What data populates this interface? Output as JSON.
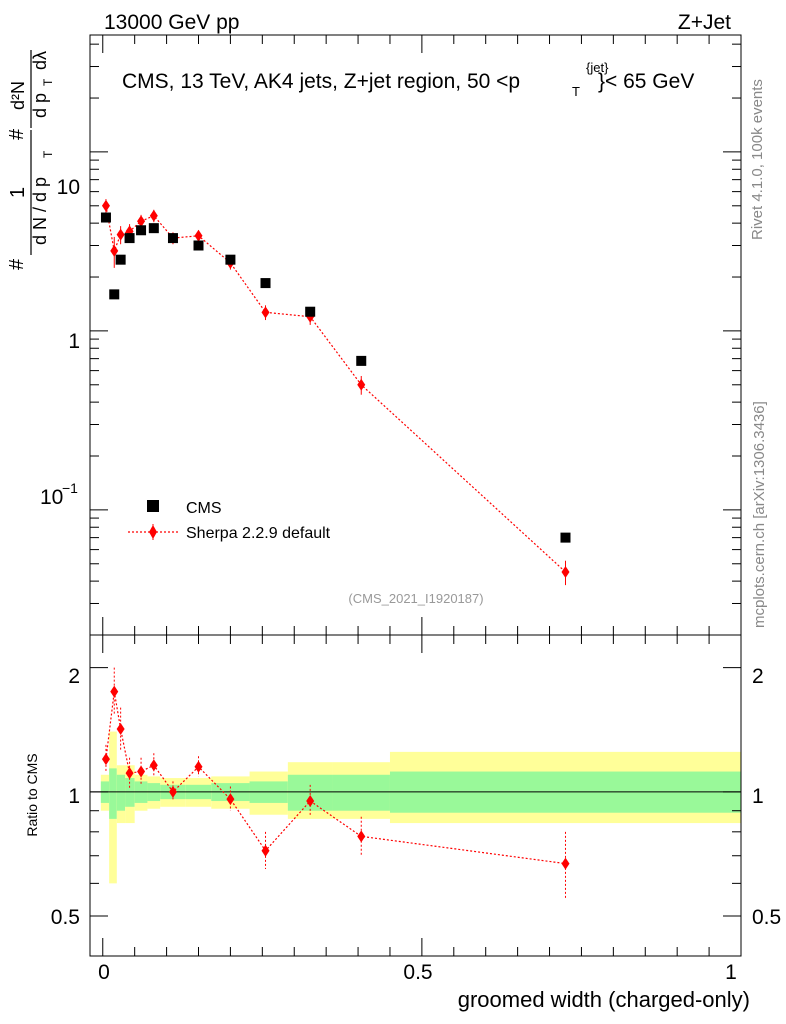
{
  "header": {
    "energy_label": "13000 GeV pp",
    "process_label": "Z+Jet"
  },
  "side_labels": {
    "rivet": "Rivet 4.1.0,  100k events",
    "mcplots": "mcplots.cern.ch [arXiv:1306.3436]"
  },
  "colors": {
    "cms": "#000000",
    "sherpa": "#ff0000",
    "band_inner": "#99f999",
    "band_outer": "#ffff99"
  },
  "chart_data": [
    {
      "type": "scatter",
      "title": "CMS, 13 TeV, AK4 jets, Z+jet region, 50 <p",
      "title_sup": "{jet}",
      "title_sub": "T",
      "title_tail": "}< 65 GeV",
      "analysis_id": "(CMS_2021_I1920187)",
      "ylabel_parts": {
        "frac_num": "1",
        "frac_den": "d N / d p",
        "frac_den_sub": "T",
        "deriv_num": "d²N",
        "deriv_den": "d p",
        "deriv_den_sub": "T",
        "dlambda": "dλ",
        "hash1": "#",
        "hash2": "#"
      },
      "yscale": "log",
      "ylim": [
        0.02,
        45
      ],
      "xlim": [
        -0.02,
        1.0
      ],
      "y_tick_labels": [
        "1",
        "10"
      ],
      "y_tick_label_sci": {
        "base": "10",
        "exp": "−1"
      },
      "legend": {
        "placement": "bottom-left",
        "entries": [
          "CMS",
          "Sherpa 2.2.9 default"
        ]
      },
      "series": [
        {
          "name": "CMS",
          "marker": "square",
          "x": [
            0.005,
            0.018,
            0.028,
            0.042,
            0.06,
            0.08,
            0.11,
            0.15,
            0.2,
            0.255,
            0.325,
            0.405,
            0.725
          ],
          "y": [
            4.3,
            1.6,
            2.5,
            3.3,
            3.65,
            3.75,
            3.3,
            3.0,
            2.5,
            1.85,
            1.28,
            0.68,
            0.07
          ]
        },
        {
          "name": "Sherpa 2.2.9 default",
          "marker": "diamond",
          "x": [
            0.005,
            0.018,
            0.028,
            0.042,
            0.06,
            0.08,
            0.11,
            0.15,
            0.2,
            0.255,
            0.325,
            0.405,
            0.725
          ],
          "y": [
            5.0,
            2.8,
            3.45,
            3.6,
            4.1,
            4.4,
            3.3,
            3.4,
            2.4,
            1.27,
            1.2,
            0.5,
            0.045
          ],
          "err": [
            0.45,
            0.55,
            0.4,
            0.35,
            0.35,
            0.35,
            0.25,
            0.25,
            0.2,
            0.12,
            0.12,
            0.06,
            0.007
          ]
        }
      ]
    },
    {
      "type": "scatter",
      "title": "Ratio to CMS",
      "yscale": "log",
      "ylim": [
        0.4,
        2.4
      ],
      "xlim": [
        -0.02,
        1.0
      ],
      "xlabel": "groomed width (charged-only)",
      "x_tick_labels": [
        "0",
        "0.5",
        "1"
      ],
      "y_tick_labels": [
        "0.5",
        "1",
        "2"
      ],
      "reference_line": 1,
      "bands": [
        {
          "x0": -0.003,
          "x1": 0.01,
          "inner": [
            0.94,
            1.06
          ],
          "outer": [
            0.9,
            1.1
          ]
        },
        {
          "x0": 0.01,
          "x1": 0.022,
          "inner": [
            0.86,
            1.14
          ],
          "outer": [
            0.6,
            1.4
          ]
        },
        {
          "x0": 0.022,
          "x1": 0.035,
          "inner": [
            0.9,
            1.1
          ],
          "outer": [
            0.84,
            1.16
          ]
        },
        {
          "x0": 0.035,
          "x1": 0.05,
          "inner": [
            0.92,
            1.08
          ],
          "outer": [
            0.84,
            1.16
          ]
        },
        {
          "x0": 0.05,
          "x1": 0.07,
          "inner": [
            0.94,
            1.06
          ],
          "outer": [
            0.9,
            1.1
          ]
        },
        {
          "x0": 0.07,
          "x1": 0.09,
          "inner": [
            0.95,
            1.05
          ],
          "outer": [
            0.91,
            1.09
          ]
        },
        {
          "x0": 0.09,
          "x1": 0.13,
          "inner": [
            0.96,
            1.04
          ],
          "outer": [
            0.92,
            1.08
          ]
        },
        {
          "x0": 0.13,
          "x1": 0.17,
          "inner": [
            0.96,
            1.04
          ],
          "outer": [
            0.92,
            1.08
          ]
        },
        {
          "x0": 0.17,
          "x1": 0.23,
          "inner": [
            0.95,
            1.05
          ],
          "outer": [
            0.91,
            1.09
          ]
        },
        {
          "x0": 0.23,
          "x1": 0.29,
          "inner": [
            0.94,
            1.06
          ],
          "outer": [
            0.88,
            1.12
          ]
        },
        {
          "x0": 0.29,
          "x1": 0.36,
          "inner": [
            0.9,
            1.1
          ],
          "outer": [
            0.86,
            1.18
          ]
        },
        {
          "x0": 0.36,
          "x1": 0.45,
          "inner": [
            0.9,
            1.1
          ],
          "outer": [
            0.86,
            1.18
          ]
        },
        {
          "x0": 0.45,
          "x1": 1.0,
          "inner": [
            0.89,
            1.12
          ],
          "outer": [
            0.84,
            1.25
          ]
        }
      ],
      "series": [
        {
          "name": "Sherpa 2.2.9 default",
          "x": [
            0.005,
            0.018,
            0.028,
            0.042,
            0.06,
            0.08,
            0.11,
            0.15,
            0.2,
            0.255,
            0.325,
            0.405,
            0.725
          ],
          "y": [
            1.2,
            1.75,
            1.42,
            1.11,
            1.12,
            1.16,
            1.0,
            1.15,
            0.96,
            0.72,
            0.95,
            0.78,
            0.67
          ],
          "err_lo": [
            0.08,
            0.22,
            0.16,
            0.09,
            0.08,
            0.07,
            0.05,
            0.06,
            0.06,
            0.07,
            0.08,
            0.08,
            0.12
          ],
          "err_hi": [
            0.1,
            0.25,
            0.18,
            0.1,
            0.09,
            0.08,
            0.06,
            0.07,
            0.07,
            0.08,
            0.09,
            0.09,
            0.13
          ]
        }
      ]
    }
  ]
}
